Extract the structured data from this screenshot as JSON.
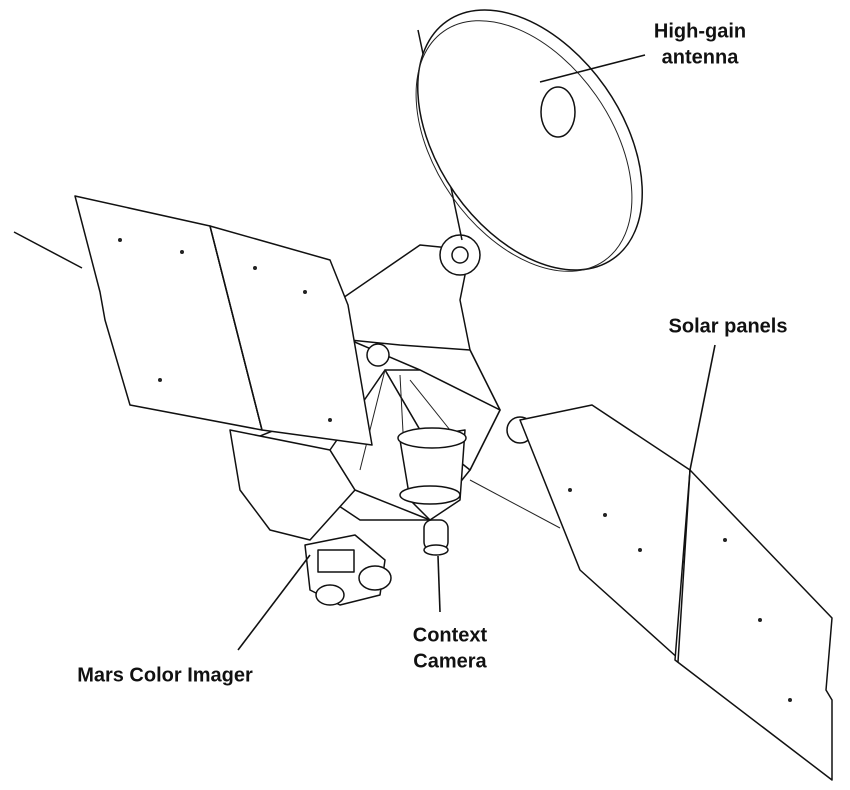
{
  "labels": [
    {
      "lines": [
        "High-gain",
        "antenna"
      ]
    },
    {
      "lines": [
        "Solar panels"
      ]
    },
    {
      "lines": [
        "Mars Color Imager"
      ]
    },
    {
      "lines": [
        "Context",
        "Camera"
      ]
    }
  ]
}
